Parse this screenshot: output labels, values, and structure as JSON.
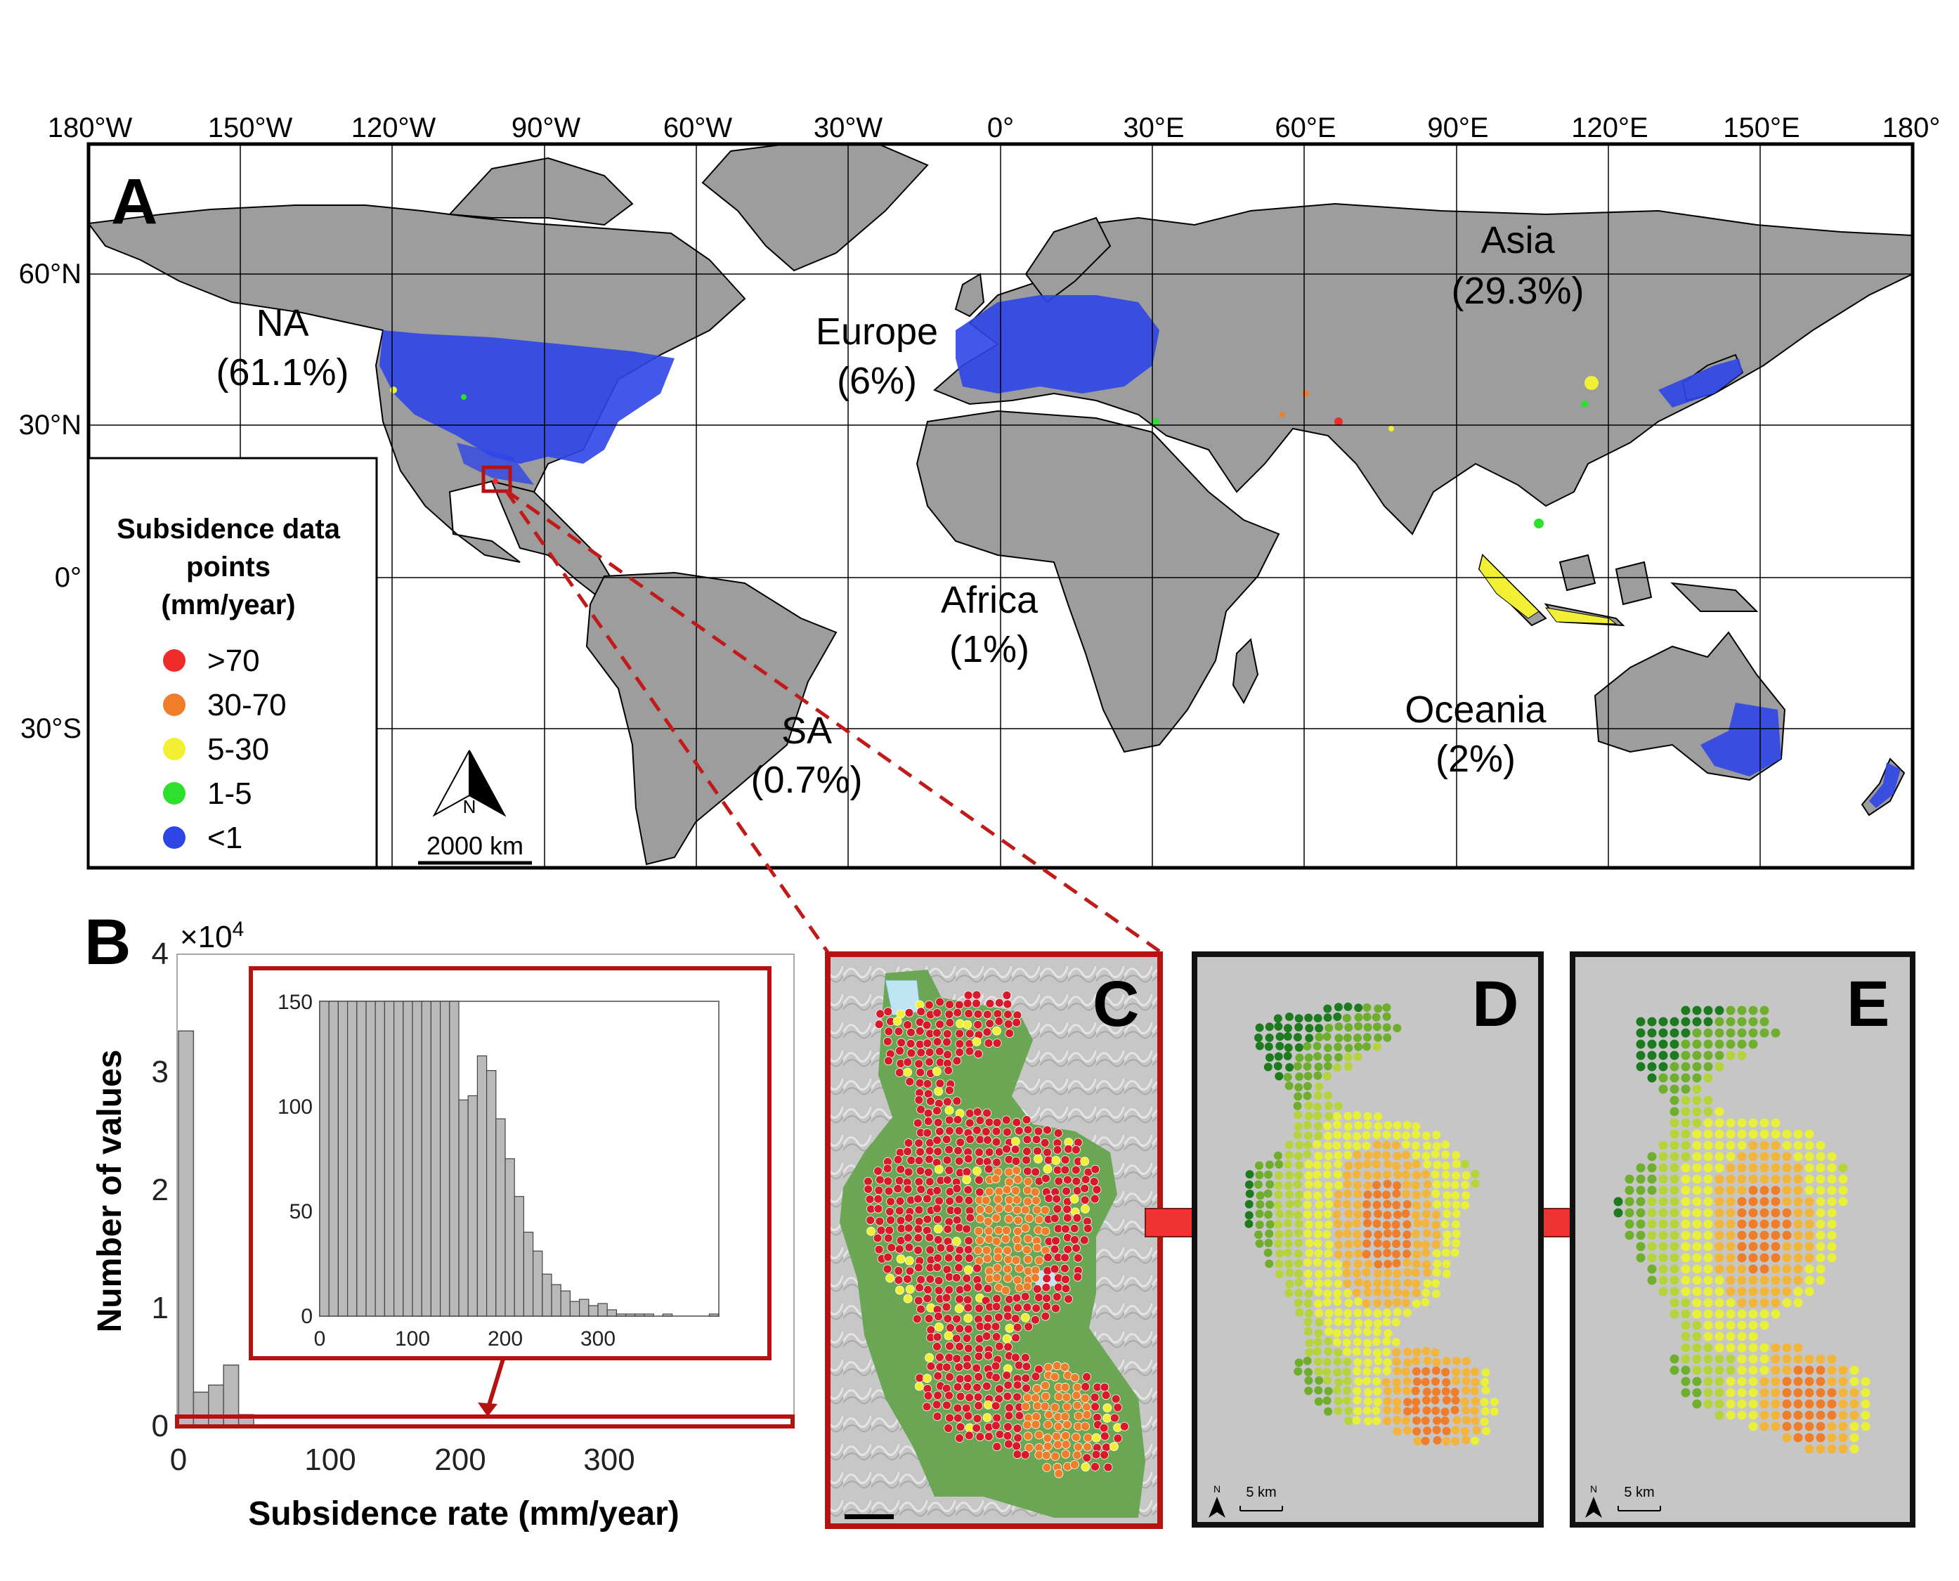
{
  "panel_a": {
    "letter": "A",
    "lon_ticks": [
      "180°W",
      "150°W",
      "120°W",
      "90°W",
      "60°W",
      "30°W",
      "0°",
      "30°E",
      "60°E",
      "90°E",
      "120°E",
      "150°E",
      "180°"
    ],
    "lat_ticks": [
      "60°N",
      "30°N",
      "0°",
      "30°S"
    ],
    "regions": {
      "na": {
        "name": "NA",
        "pct": "(61.1%)"
      },
      "europe": {
        "name": "Europe",
        "pct": "(6%)"
      },
      "asia": {
        "name": "Asia",
        "pct": "(29.3%)"
      },
      "africa": {
        "name": "Africa",
        "pct": "(1%)"
      },
      "sa": {
        "name": "SA",
        "pct": "(0.7%)"
      },
      "oceania": {
        "name": "Oceania",
        "pct": "(2%)"
      }
    },
    "legend": {
      "title_line1": "Subsidence data",
      "title_line2": "points",
      "title_line3": "(mm/year)",
      "items": [
        {
          "label": ">70",
          "color": "#ee2c2c"
        },
        {
          "label": "30-70",
          "color": "#f07d2a"
        },
        {
          "label": "5-30",
          "color": "#f2f035"
        },
        {
          "label": "1-5",
          "color": "#2ee02e"
        },
        {
          "label": "<1",
          "color": "#2f46e6"
        }
      ]
    },
    "north_label": "N",
    "scale_label": "2000 km",
    "land_color": "#9d9d9d",
    "point_color": "#2f46e6"
  },
  "panel_b": {
    "letter": "B",
    "exponent_prefix": "×10",
    "exponent_power": "4",
    "ylabel": "Number of values",
    "xlabel": "Subsidence rate (mm/year)",
    "y_ticks": [
      "0",
      "1",
      "2",
      "3",
      "4"
    ],
    "x_ticks": [
      "0",
      "100",
      "200",
      "300"
    ],
    "inset_y_ticks": [
      "0",
      "50",
      "100",
      "150"
    ],
    "inset_x_ticks": [
      "0",
      "100",
      "200",
      "300"
    ]
  },
  "chart_data": [
    {
      "type": "bar",
      "title": "",
      "xlabel": "Subsidence rate (mm/year)",
      "ylabel": "Number of values",
      "xlim": [
        0,
        400
      ],
      "ylim": [
        0,
        40000
      ],
      "bin_width": 10,
      "bin_starts": [
        0,
        10,
        20,
        30,
        40
      ],
      "values": [
        33500,
        2900,
        3500,
        5200,
        1000
      ]
    },
    {
      "type": "bar",
      "title": "",
      "xlabel": "",
      "ylabel": "",
      "xlim": [
        0,
        430
      ],
      "ylim": [
        0,
        150
      ],
      "bin_width": 10,
      "bin_starts": [
        0,
        10,
        20,
        30,
        40,
        50,
        60,
        70,
        80,
        90,
        100,
        110,
        120,
        130,
        140,
        150,
        160,
        170,
        180,
        190,
        200,
        210,
        220,
        230,
        240,
        250,
        260,
        270,
        280,
        290,
        300,
        310,
        320,
        330,
        340,
        350,
        360,
        370,
        380,
        390,
        400,
        410,
        420
      ],
      "values": [
        150,
        150,
        150,
        150,
        150,
        150,
        150,
        150,
        150,
        150,
        150,
        150,
        150,
        150,
        150,
        103,
        105,
        124,
        117,
        94,
        75,
        57,
        40,
        31,
        20,
        15,
        12,
        7,
        8,
        5,
        6,
        3,
        1,
        1,
        1,
        1,
        0,
        1,
        0,
        0,
        0,
        0,
        1
      ]
    }
  ],
  "panel_c": {
    "letter": "C"
  },
  "panel_d": {
    "letter": "D",
    "scale_label": "5 km",
    "north_label": "N"
  },
  "panel_e": {
    "letter": "E",
    "scale_label": "5 km",
    "north_label": "N"
  }
}
